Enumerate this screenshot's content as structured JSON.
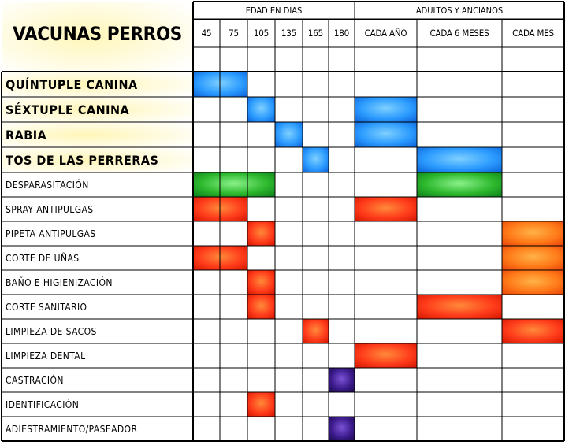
{
  "chart_data": {
    "type": "table",
    "title": "VACUNAS PERROS",
    "column_groups": [
      {
        "label": "EDAD EN DIAS",
        "columns": [
          "45",
          "75",
          "105",
          "135",
          "165",
          "180"
        ]
      },
      {
        "label": "ADULTOS Y ANCIANOS",
        "columns": [
          "CADA AÑO",
          "CADA 6 MESES",
          "CADA MES"
        ]
      }
    ],
    "columns": [
      "45",
      "75",
      "105",
      "135",
      "165",
      "180",
      "CADA AÑO",
      "CADA 6 MESES",
      "CADA MES"
    ],
    "colors": {
      "blue": "#1e90ff",
      "green": "#2db82d",
      "red": "#ff3b1a",
      "orange": "#ff6a10",
      "purple": "#3b1a8a",
      "highlight": "#fff8cc",
      "grid": "#000000"
    },
    "rows": [
      {
        "label": "QUÍNTUPLE CANINA",
        "style": "big",
        "highlight": true,
        "marks": [
          {
            "from": "45",
            "to": "75",
            "color": "blue"
          }
        ]
      },
      {
        "label": "SÉXTUPLE CANINA",
        "style": "big",
        "highlight": true,
        "marks": [
          {
            "from": "105",
            "to": "105",
            "color": "blue"
          },
          {
            "from": "CADA AÑO",
            "to": "CADA AÑO",
            "color": "blue"
          }
        ]
      },
      {
        "label": "RABIA",
        "style": "big",
        "highlight": true,
        "marks": [
          {
            "from": "135",
            "to": "135",
            "color": "blue"
          },
          {
            "from": "CADA AÑO",
            "to": "CADA AÑO",
            "color": "blue"
          }
        ]
      },
      {
        "label": "TOS DE LAS PERRERAS",
        "style": "big",
        "highlight": true,
        "marks": [
          {
            "from": "165",
            "to": "165",
            "color": "blue"
          },
          {
            "from": "CADA 6 MESES",
            "to": "CADA 6 MESES",
            "color": "blue"
          }
        ]
      },
      {
        "label": "DESPARASITACIÓN",
        "style": "small",
        "marks": [
          {
            "from": "45",
            "to": "105",
            "color": "green"
          },
          {
            "from": "CADA 6 MESES",
            "to": "CADA 6 MESES",
            "color": "green"
          }
        ]
      },
      {
        "label": "SPRAY ANTIPULGAS",
        "style": "small",
        "marks": [
          {
            "from": "45",
            "to": "75",
            "color": "red"
          },
          {
            "from": "CADA AÑO",
            "to": "CADA AÑO",
            "color": "red"
          }
        ]
      },
      {
        "label": "PIPETA ANTIPULGAS",
        "style": "small",
        "marks": [
          {
            "from": "105",
            "to": "105",
            "color": "red"
          },
          {
            "from": "CADA MES",
            "to": "CADA MES",
            "color": "orange"
          }
        ]
      },
      {
        "label": "CORTE DE UÑAS",
        "style": "small",
        "marks": [
          {
            "from": "45",
            "to": "75",
            "color": "red"
          },
          {
            "from": "CADA MES",
            "to": "CADA MES",
            "color": "orange"
          }
        ]
      },
      {
        "label": "BAÑO E HIGIENIZACIÓN",
        "style": "small",
        "marks": [
          {
            "from": "105",
            "to": "105",
            "color": "red"
          },
          {
            "from": "CADA MES",
            "to": "CADA MES",
            "color": "orange"
          }
        ]
      },
      {
        "label": "CORTE SANITARIO",
        "style": "small",
        "marks": [
          {
            "from": "105",
            "to": "105",
            "color": "red"
          },
          {
            "from": "CADA 6 MESES",
            "to": "CADA 6 MESES",
            "color": "red"
          }
        ]
      },
      {
        "label": "LIMPIEZA DE SACOS",
        "style": "small",
        "marks": [
          {
            "from": "165",
            "to": "165",
            "color": "red"
          },
          {
            "from": "CADA MES",
            "to": "CADA MES",
            "color": "red"
          }
        ]
      },
      {
        "label": "LIMPIEZA DENTAL",
        "style": "small",
        "marks": [
          {
            "from": "CADA AÑO",
            "to": "CADA AÑO",
            "color": "red"
          }
        ]
      },
      {
        "label": "CASTRACIÓN",
        "style": "small",
        "marks": [
          {
            "from": "180",
            "to": "180",
            "color": "purple"
          }
        ]
      },
      {
        "label": "IDENTIFICACIÓN",
        "style": "small",
        "marks": [
          {
            "from": "105",
            "to": "105",
            "color": "red"
          }
        ]
      },
      {
        "label": "ADIESTRAMIENTO/PASEADOR",
        "style": "small",
        "marks": [
          {
            "from": "180",
            "to": "180",
            "color": "purple"
          }
        ]
      }
    ]
  }
}
